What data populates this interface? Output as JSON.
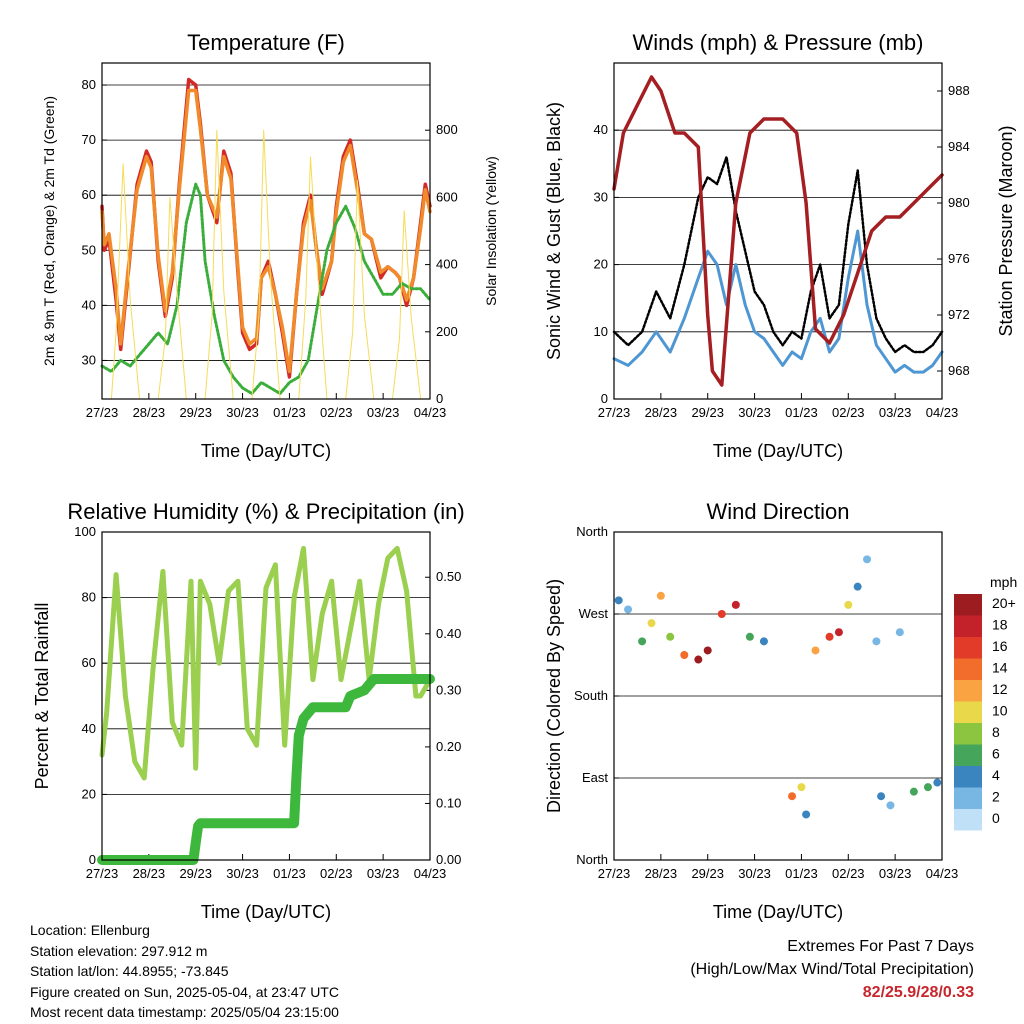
{
  "x_ticks": [
    "27/23",
    "28/23",
    "29/23",
    "30/23",
    "01/23",
    "02/23",
    "03/23",
    "04/23"
  ],
  "temperature_panel": {
    "title": "Temperature (F)",
    "xlabel": "Time (Day/UTC)",
    "ylabel_left": "2m & 9m T (Red, Orange) & 2m Td (Green)",
    "ylabel_right": "Solar Insolation (Yellow)",
    "colors": {
      "t2m": "#d42a27",
      "t9m": "#f08a2a",
      "td": "#3aad3a",
      "solar": "#f5dc5a"
    }
  },
  "wind_panel": {
    "title": "Winds (mph) & Pressure (mb)",
    "xlabel": "Time (Day/UTC)",
    "ylabel_left": "Sonic Wind & Gust (Blue, Black)",
    "ylabel_right": "Station Pressure (Maroon)",
    "colors": {
      "wind": "#4f97d2",
      "gust": "#000000",
      "pressure": "#a41e22"
    }
  },
  "rh_panel": {
    "title": "Relative Humidity (%) & Precipitation (in)",
    "xlabel": "Time (Day/UTC)",
    "ylabel_left": "Percent & Total Rainfall",
    "colors": {
      "rh": "#9bcf4f",
      "precip": "#3db83d"
    }
  },
  "wdir_panel": {
    "title": "Wind Direction",
    "xlabel": "Time (Day/UTC)",
    "ylabel_left": "Direction (Colored By Speed)",
    "legend_title": "mph"
  },
  "info": {
    "location": "Location: Ellenburg",
    "elevation": "Station elevation: 297.912 m",
    "latlon": "Station lat/lon: 44.8955; -73.845",
    "created": "Figure created on Sun, 2025-05-04, at 23:47 UTC",
    "latest": "Most recent data timestamp: 2025/05/04 23:15:00"
  },
  "extremes": {
    "title": "Extremes For Past 7 Days",
    "subtitle": "(High/Low/Max Wind/Total Precipitation)",
    "values": "82/25.9/28/0.33"
  },
  "chart_data": [
    {
      "type": "line",
      "id": "temperature",
      "x_range_days": [
        0,
        7
      ],
      "ylim": [
        23,
        84
      ],
      "yticks": [
        30,
        40,
        50,
        60,
        70,
        80
      ],
      "y2lim": [
        0,
        1000
      ],
      "y2ticks": [
        0,
        200,
        400,
        600,
        800
      ],
      "series": [
        {
          "key": "t2m",
          "x": [
            0,
            0.05,
            0.15,
            0.3,
            0.4,
            0.55,
            0.75,
            0.95,
            1.05,
            1.2,
            1.35,
            1.5,
            1.65,
            1.85,
            2.0,
            2.1,
            2.25,
            2.45,
            2.6,
            2.75,
            2.9,
            3.0,
            3.15,
            3.3,
            3.4,
            3.55,
            3.7,
            3.85,
            4.0,
            4.15,
            4.3,
            4.45,
            4.55,
            4.7,
            4.9,
            5.0,
            5.15,
            5.3,
            5.45,
            5.6,
            5.75,
            5.95,
            6.1,
            6.25,
            6.35,
            6.5,
            6.65,
            6.8,
            6.9,
            7.0
          ],
          "values": [
            58,
            50,
            52,
            41,
            32,
            45,
            62,
            68,
            66,
            48,
            38,
            45,
            62,
            81,
            80,
            73,
            60,
            55,
            68,
            64,
            46,
            35,
            32,
            33,
            45,
            48,
            42,
            35,
            27,
            42,
            55,
            60,
            52,
            42,
            48,
            58,
            67,
            70,
            62,
            53,
            52,
            45,
            47,
            46,
            45,
            40,
            45,
            55,
            62,
            58
          ]
        },
        {
          "key": "t9m",
          "x": [
            0,
            0.05,
            0.15,
            0.3,
            0.4,
            0.55,
            0.75,
            0.95,
            1.05,
            1.2,
            1.35,
            1.5,
            1.65,
            1.85,
            2.0,
            2.1,
            2.25,
            2.45,
            2.6,
            2.75,
            2.9,
            3.0,
            3.15,
            3.3,
            3.4,
            3.55,
            3.7,
            3.85,
            4.0,
            4.15,
            4.3,
            4.45,
            4.55,
            4.7,
            4.9,
            5.0,
            5.15,
            5.3,
            5.45,
            5.6,
            5.75,
            5.95,
            6.1,
            6.25,
            6.35,
            6.5,
            6.65,
            6.8,
            6.9,
            7.0
          ],
          "values": [
            57,
            51,
            53,
            43,
            33,
            46,
            61,
            67,
            65,
            49,
            39,
            46,
            61,
            79,
            79,
            72,
            60,
            56,
            67,
            63,
            47,
            36,
            33,
            34,
            45,
            47,
            42,
            36,
            28,
            42,
            54,
            59,
            52,
            43,
            48,
            57,
            66,
            69,
            61,
            53,
            52,
            46,
            47,
            46,
            45,
            41,
            45,
            54,
            61,
            57
          ]
        },
        {
          "key": "td",
          "x": [
            0,
            0.2,
            0.4,
            0.6,
            0.8,
            1.0,
            1.2,
            1.4,
            1.6,
            1.8,
            2.0,
            2.1,
            2.2,
            2.4,
            2.6,
            2.8,
            3.0,
            3.2,
            3.4,
            3.6,
            3.8,
            4.0,
            4.2,
            4.4,
            4.6,
            4.8,
            5.0,
            5.2,
            5.4,
            5.6,
            5.8,
            6.0,
            6.2,
            6.4,
            6.6,
            6.8,
            7.0
          ],
          "values": [
            29,
            28,
            30,
            29,
            31,
            33,
            35,
            33,
            40,
            55,
            62,
            60,
            48,
            38,
            30,
            27,
            25,
            24,
            26,
            25,
            24,
            26,
            27,
            30,
            40,
            50,
            55,
            58,
            54,
            48,
            45,
            42,
            42,
            44,
            43,
            43,
            41
          ]
        },
        {
          "key": "solar",
          "x": [
            0,
            0.2,
            0.3,
            0.45,
            0.6,
            0.8,
            1.0,
            1.2,
            1.35,
            1.45,
            1.6,
            1.8,
            2.0,
            2.2,
            2.35,
            2.45,
            2.6,
            2.8,
            3.0,
            3.2,
            3.35,
            3.45,
            3.6,
            3.8,
            4.0,
            4.2,
            4.35,
            4.45,
            4.6,
            4.8,
            5.0,
            5.2,
            5.35,
            5.45,
            5.6,
            5.8,
            6.0,
            6.2,
            6.35,
            6.45,
            6.6,
            6.8,
            7.0
          ],
          "values": [
            0,
            0,
            200,
            700,
            300,
            0,
            0,
            0,
            180,
            600,
            320,
            0,
            0,
            0,
            250,
            800,
            320,
            0,
            0,
            0,
            250,
            800,
            350,
            0,
            0,
            0,
            300,
            720,
            380,
            0,
            0,
            0,
            200,
            650,
            250,
            0,
            0,
            0,
            180,
            560,
            240,
            0,
            0
          ]
        }
      ]
    },
    {
      "type": "line",
      "id": "winds",
      "x_range_days": [
        0,
        7
      ],
      "ylim": [
        0,
        50
      ],
      "yticks": [
        0,
        10,
        20,
        30,
        40
      ],
      "y2lim": [
        966,
        990
      ],
      "y2ticks": [
        968,
        972,
        976,
        980,
        984,
        988
      ],
      "series": [
        {
          "key": "wind",
          "x": [
            0,
            0.3,
            0.6,
            0.9,
            1.2,
            1.5,
            1.8,
            2.0,
            2.2,
            2.4,
            2.6,
            2.8,
            3.0,
            3.2,
            3.4,
            3.6,
            3.8,
            4.0,
            4.2,
            4.4,
            4.6,
            4.8,
            5.0,
            5.2,
            5.4,
            5.6,
            5.8,
            6.0,
            6.2,
            6.4,
            6.6,
            6.8,
            7.0
          ],
          "values": [
            6,
            5,
            7,
            10,
            7,
            12,
            18,
            22,
            20,
            14,
            20,
            14,
            10,
            9,
            7,
            5,
            7,
            6,
            10,
            12,
            7,
            9,
            18,
            25,
            14,
            8,
            6,
            4,
            5,
            4,
            4,
            5,
            7
          ]
        },
        {
          "key": "gust",
          "x": [
            0,
            0.3,
            0.6,
            0.9,
            1.2,
            1.5,
            1.8,
            2.0,
            2.2,
            2.4,
            2.6,
            2.8,
            3.0,
            3.2,
            3.4,
            3.6,
            3.8,
            4.0,
            4.2,
            4.4,
            4.6,
            4.8,
            5.0,
            5.2,
            5.4,
            5.6,
            5.8,
            6.0,
            6.2,
            6.4,
            6.6,
            6.8,
            7.0
          ],
          "values": [
            10,
            8,
            10,
            16,
            12,
            20,
            30,
            33,
            32,
            36,
            28,
            22,
            16,
            14,
            10,
            8,
            10,
            9,
            16,
            20,
            12,
            14,
            26,
            34,
            20,
            12,
            9,
            7,
            8,
            7,
            7,
            8,
            10
          ]
        },
        {
          "key": "pressure",
          "x": [
            0,
            0.2,
            0.5,
            0.8,
            1.0,
            1.3,
            1.5,
            1.8,
            2.0,
            2.1,
            2.3,
            2.6,
            2.9,
            3.2,
            3.4,
            3.6,
            3.9,
            4.1,
            4.3,
            4.6,
            4.9,
            5.2,
            5.5,
            5.8,
            6.1,
            6.4,
            6.7,
            7.0
          ],
          "values": [
            981,
            985,
            987,
            989,
            988,
            985,
            985,
            984,
            972,
            968,
            967,
            980,
            985,
            986,
            986,
            986,
            985,
            980,
            971,
            970,
            972,
            975,
            978,
            979,
            979,
            980,
            981,
            982
          ]
        }
      ]
    },
    {
      "type": "line",
      "id": "humidity",
      "x_range_days": [
        0,
        7
      ],
      "ylim": [
        0,
        100
      ],
      "yticks": [
        0,
        20,
        40,
        60,
        80,
        100
      ],
      "y2lim": [
        0,
        0.58
      ],
      "y2ticks": [
        0.0,
        0.1,
        0.2,
        0.3,
        0.4,
        0.5
      ],
      "y2ticklabels": [
        "0.00",
        "0.10",
        "0.20",
        "0.30",
        "0.40",
        "0.50"
      ],
      "series": [
        {
          "key": "rh",
          "x": [
            0,
            0.1,
            0.3,
            0.5,
            0.7,
            0.9,
            1.1,
            1.3,
            1.5,
            1.7,
            1.9,
            2.0,
            2.1,
            2.3,
            2.5,
            2.7,
            2.9,
            3.1,
            3.3,
            3.5,
            3.7,
            3.9,
            4.1,
            4.3,
            4.5,
            4.7,
            4.9,
            5.1,
            5.3,
            5.5,
            5.7,
            5.9,
            6.1,
            6.3,
            6.5,
            6.7,
            6.8,
            7.0
          ],
          "values": [
            32,
            45,
            87,
            50,
            30,
            25,
            60,
            88,
            42,
            35,
            85,
            28,
            85,
            78,
            60,
            82,
            85,
            40,
            35,
            83,
            90,
            35,
            80,
            95,
            55,
            75,
            85,
            55,
            70,
            85,
            55,
            78,
            92,
            95,
            82,
            50,
            50,
            55
          ]
        },
        {
          "key": "precip",
          "x": [
            0,
            1.95,
            2.0,
            2.05,
            2.1,
            4.1,
            4.15,
            4.2,
            4.3,
            4.5,
            5.2,
            5.3,
            5.6,
            5.8,
            6.0,
            6.5,
            7.0
          ],
          "values": [
            0,
            0,
            0.03,
            0.06,
            0.065,
            0.065,
            0.15,
            0.22,
            0.25,
            0.27,
            0.27,
            0.29,
            0.3,
            0.32,
            0.32,
            0.32,
            0.32
          ]
        }
      ]
    },
    {
      "type": "scatter",
      "id": "wind_direction",
      "x_range_days": [
        0,
        7
      ],
      "ylim": [
        0,
        360
      ],
      "yticks": [
        0,
        90,
        180,
        270,
        360
      ],
      "yticklabels": [
        "North",
        "East",
        "South",
        "West",
        "North"
      ],
      "legend": {
        "title": "mph",
        "labels": [
          "20+",
          "18",
          "16",
          "14",
          "12",
          "10",
          "8",
          "6",
          "4",
          "2",
          "0"
        ],
        "colors": [
          "#9c1c1f",
          "#c4222a",
          "#e23b2a",
          "#f26c2c",
          "#f9a343",
          "#e8d84a",
          "#8cc540",
          "#45a65b",
          "#3a84c0",
          "#78b6e4",
          "#bfe0f6"
        ]
      },
      "points": [
        {
          "x": 0.1,
          "y": 285,
          "speed": 4
        },
        {
          "x": 0.3,
          "y": 275,
          "speed": 2
        },
        {
          "x": 0.6,
          "y": 240,
          "speed": 6
        },
        {
          "x": 0.8,
          "y": 260,
          "speed": 10
        },
        {
          "x": 1.0,
          "y": 290,
          "speed": 12
        },
        {
          "x": 1.2,
          "y": 245,
          "speed": 8
        },
        {
          "x": 1.5,
          "y": 225,
          "speed": 14
        },
        {
          "x": 1.8,
          "y": 220,
          "speed": 20
        },
        {
          "x": 2.0,
          "y": 230,
          "speed": 20
        },
        {
          "x": 2.3,
          "y": 270,
          "speed": 16
        },
        {
          "x": 2.6,
          "y": 280,
          "speed": 18
        },
        {
          "x": 2.9,
          "y": 245,
          "speed": 6
        },
        {
          "x": 3.2,
          "y": 240,
          "speed": 4
        },
        {
          "x": 3.8,
          "y": 70,
          "speed": 14
        },
        {
          "x": 4.0,
          "y": 80,
          "speed": 10
        },
        {
          "x": 4.1,
          "y": 50,
          "speed": 4
        },
        {
          "x": 4.3,
          "y": 230,
          "speed": 12
        },
        {
          "x": 4.6,
          "y": 245,
          "speed": 16
        },
        {
          "x": 4.8,
          "y": 250,
          "speed": 18
        },
        {
          "x": 5.0,
          "y": 280,
          "speed": 10
        },
        {
          "x": 5.2,
          "y": 300,
          "speed": 4
        },
        {
          "x": 5.4,
          "y": 330,
          "speed": 2
        },
        {
          "x": 5.6,
          "y": 240,
          "speed": 2
        },
        {
          "x": 5.7,
          "y": 70,
          "speed": 4
        },
        {
          "x": 5.9,
          "y": 60,
          "speed": 2
        },
        {
          "x": 6.1,
          "y": 250,
          "speed": 2
        },
        {
          "x": 6.4,
          "y": 75,
          "speed": 6
        },
        {
          "x": 6.7,
          "y": 80,
          "speed": 6
        },
        {
          "x": 6.9,
          "y": 85,
          "speed": 4
        }
      ]
    }
  ]
}
